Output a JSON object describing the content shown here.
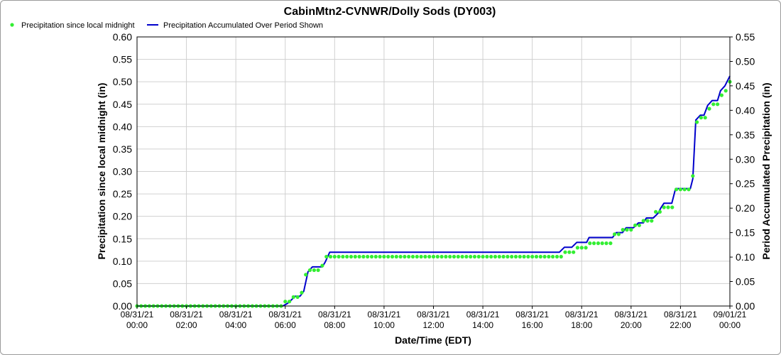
{
  "chart_data": {
    "type": "line",
    "title": "CabinMtn2-CVNWR/Dolly Sods (DY003)",
    "xlabel": "Date/Time (EDT)",
    "ylabel_left": "Precipitation since local midnight (in)",
    "ylabel_right": "Period Accumulated Precipitation (in)",
    "grid": true,
    "legend_position": "top-left",
    "x_range_hours": [
      0,
      24
    ],
    "x_ticks": [
      {
        "hour": 0,
        "date": "08/31/21",
        "time": "00:00"
      },
      {
        "hour": 2,
        "date": "08/31/21",
        "time": "02:00"
      },
      {
        "hour": 4,
        "date": "08/31/21",
        "time": "04:00"
      },
      {
        "hour": 6,
        "date": "08/31/21",
        "time": "06:00"
      },
      {
        "hour": 8,
        "date": "08/31/21",
        "time": "08:00"
      },
      {
        "hour": 10,
        "date": "08/31/21",
        "time": "10:00"
      },
      {
        "hour": 12,
        "date": "08/31/21",
        "time": "12:00"
      },
      {
        "hour": 14,
        "date": "08/31/21",
        "time": "14:00"
      },
      {
        "hour": 16,
        "date": "08/31/21",
        "time": "16:00"
      },
      {
        "hour": 18,
        "date": "08/31/21",
        "time": "18:00"
      },
      {
        "hour": 20,
        "date": "08/31/21",
        "time": "20:00"
      },
      {
        "hour": 22,
        "date": "08/31/21",
        "time": "22:00"
      },
      {
        "hour": 24,
        "date": "09/01/21",
        "time": "00:00"
      }
    ],
    "left_axis": {
      "min": 0,
      "max": 0.6,
      "step": 0.05,
      "tick_labels": [
        "0.00",
        "0.05",
        "0.10",
        "0.15",
        "0.20",
        "0.25",
        "0.30",
        "0.35",
        "0.40",
        "0.45",
        "0.50",
        "0.55",
        "0.60"
      ]
    },
    "right_axis": {
      "min": 0,
      "max": 0.55,
      "step": 0.05,
      "tick_labels": [
        "0.00",
        "0.05",
        "0.10",
        "0.15",
        "0.20",
        "0.25",
        "0.30",
        "0.35",
        "0.40",
        "0.45",
        "0.50",
        "0.55"
      ]
    },
    "series": [
      {
        "name": "Precipitation since local midnight",
        "axis": "left",
        "style": "points",
        "color": "#33ee33",
        "points": [
          [
            0.0,
            0
          ],
          [
            0.167,
            0
          ],
          [
            0.333,
            0
          ],
          [
            0.5,
            0
          ],
          [
            0.667,
            0
          ],
          [
            0.833,
            0
          ],
          [
            1.0,
            0
          ],
          [
            1.167,
            0
          ],
          [
            1.333,
            0
          ],
          [
            1.5,
            0
          ],
          [
            1.667,
            0
          ],
          [
            1.833,
            0
          ],
          [
            2.0,
            0
          ],
          [
            2.167,
            0
          ],
          [
            2.333,
            0
          ],
          [
            2.5,
            0
          ],
          [
            2.667,
            0
          ],
          [
            2.833,
            0
          ],
          [
            3.0,
            0
          ],
          [
            3.167,
            0
          ],
          [
            3.333,
            0
          ],
          [
            3.5,
            0
          ],
          [
            3.667,
            0
          ],
          [
            3.833,
            0
          ],
          [
            4.0,
            0
          ],
          [
            4.167,
            0
          ],
          [
            4.333,
            0
          ],
          [
            4.5,
            0
          ],
          [
            4.667,
            0
          ],
          [
            4.833,
            0
          ],
          [
            5.0,
            0
          ],
          [
            5.167,
            0
          ],
          [
            5.333,
            0
          ],
          [
            5.5,
            0
          ],
          [
            5.667,
            0
          ],
          [
            5.833,
            0
          ],
          [
            6.0,
            0.01
          ],
          [
            6.167,
            0.01
          ],
          [
            6.333,
            0.02
          ],
          [
            6.5,
            0.02
          ],
          [
            6.667,
            0.03
          ],
          [
            6.833,
            0.07
          ],
          [
            7.0,
            0.08
          ],
          [
            7.167,
            0.08
          ],
          [
            7.333,
            0.08
          ],
          [
            7.5,
            0.09
          ],
          [
            7.667,
            0.11
          ],
          [
            7.833,
            0.11
          ],
          [
            8.0,
            0.11
          ],
          [
            8.167,
            0.11
          ],
          [
            8.333,
            0.11
          ],
          [
            8.5,
            0.11
          ],
          [
            8.667,
            0.11
          ],
          [
            8.833,
            0.11
          ],
          [
            9.0,
            0.11
          ],
          [
            9.167,
            0.11
          ],
          [
            9.333,
            0.11
          ],
          [
            9.5,
            0.11
          ],
          [
            9.667,
            0.11
          ],
          [
            9.833,
            0.11
          ],
          [
            10.0,
            0.11
          ],
          [
            10.167,
            0.11
          ],
          [
            10.333,
            0.11
          ],
          [
            10.5,
            0.11
          ],
          [
            10.667,
            0.11
          ],
          [
            10.833,
            0.11
          ],
          [
            11.0,
            0.11
          ],
          [
            11.167,
            0.11
          ],
          [
            11.333,
            0.11
          ],
          [
            11.5,
            0.11
          ],
          [
            11.667,
            0.11
          ],
          [
            11.833,
            0.11
          ],
          [
            12.0,
            0.11
          ],
          [
            12.167,
            0.11
          ],
          [
            12.333,
            0.11
          ],
          [
            12.5,
            0.11
          ],
          [
            12.667,
            0.11
          ],
          [
            12.833,
            0.11
          ],
          [
            13.0,
            0.11
          ],
          [
            13.167,
            0.11
          ],
          [
            13.333,
            0.11
          ],
          [
            13.5,
            0.11
          ],
          [
            13.667,
            0.11
          ],
          [
            13.833,
            0.11
          ],
          [
            14.0,
            0.11
          ],
          [
            14.167,
            0.11
          ],
          [
            14.333,
            0.11
          ],
          [
            14.5,
            0.11
          ],
          [
            14.667,
            0.11
          ],
          [
            14.833,
            0.11
          ],
          [
            15.0,
            0.11
          ],
          [
            15.167,
            0.11
          ],
          [
            15.333,
            0.11
          ],
          [
            15.5,
            0.11
          ],
          [
            15.667,
            0.11
          ],
          [
            15.833,
            0.11
          ],
          [
            16.0,
            0.11
          ],
          [
            16.167,
            0.11
          ],
          [
            16.333,
            0.11
          ],
          [
            16.5,
            0.11
          ],
          [
            16.667,
            0.11
          ],
          [
            16.833,
            0.11
          ],
          [
            17.0,
            0.11
          ],
          [
            17.167,
            0.11
          ],
          [
            17.333,
            0.12
          ],
          [
            17.5,
            0.12
          ],
          [
            17.667,
            0.12
          ],
          [
            17.833,
            0.13
          ],
          [
            18.0,
            0.13
          ],
          [
            18.167,
            0.13
          ],
          [
            18.333,
            0.14
          ],
          [
            18.5,
            0.14
          ],
          [
            18.667,
            0.14
          ],
          [
            18.833,
            0.14
          ],
          [
            19.0,
            0.14
          ],
          [
            19.167,
            0.14
          ],
          [
            19.333,
            0.16
          ],
          [
            19.5,
            0.16
          ],
          [
            19.667,
            0.17
          ],
          [
            19.833,
            0.17
          ],
          [
            20.0,
            0.17
          ],
          [
            20.167,
            0.18
          ],
          [
            20.333,
            0.18
          ],
          [
            20.5,
            0.19
          ],
          [
            20.667,
            0.19
          ],
          [
            20.833,
            0.19
          ],
          [
            21.0,
            0.21
          ],
          [
            21.167,
            0.21
          ],
          [
            21.333,
            0.22
          ],
          [
            21.5,
            0.22
          ],
          [
            21.667,
            0.22
          ],
          [
            21.833,
            0.26
          ],
          [
            22.0,
            0.26
          ],
          [
            22.167,
            0.26
          ],
          [
            22.333,
            0.26
          ],
          [
            22.5,
            0.29
          ],
          [
            22.667,
            0.41
          ],
          [
            22.833,
            0.42
          ],
          [
            23.0,
            0.42
          ],
          [
            23.167,
            0.44
          ],
          [
            23.333,
            0.45
          ],
          [
            23.5,
            0.45
          ],
          [
            23.667,
            0.47
          ],
          [
            23.833,
            0.48
          ],
          [
            24.0,
            0.5
          ]
        ]
      },
      {
        "name": "Precipitation Accumulated Over Period Shown",
        "axis": "right",
        "style": "line",
        "color": "#0000cc",
        "points": [
          [
            0,
            0
          ],
          [
            5.9,
            0
          ],
          [
            6.08,
            0.005
          ],
          [
            6.2,
            0.01
          ],
          [
            6.4,
            0.02
          ],
          [
            6.6,
            0.02
          ],
          [
            6.75,
            0.03
          ],
          [
            6.92,
            0.07
          ],
          [
            7.1,
            0.08
          ],
          [
            7.5,
            0.08
          ],
          [
            7.62,
            0.09
          ],
          [
            7.8,
            0.11
          ],
          [
            17.0,
            0.11
          ],
          [
            17.1,
            0.11
          ],
          [
            17.3,
            0.12
          ],
          [
            17.6,
            0.12
          ],
          [
            17.8,
            0.13
          ],
          [
            18.2,
            0.13
          ],
          [
            18.3,
            0.14
          ],
          [
            18.6,
            0.14
          ],
          [
            18.75,
            0.14
          ],
          [
            19.25,
            0.14
          ],
          [
            19.4,
            0.15
          ],
          [
            19.65,
            0.15
          ],
          [
            19.8,
            0.16
          ],
          [
            20.1,
            0.16
          ],
          [
            20.3,
            0.17
          ],
          [
            20.5,
            0.17
          ],
          [
            20.62,
            0.18
          ],
          [
            20.9,
            0.18
          ],
          [
            21.1,
            0.19
          ],
          [
            21.2,
            0.2
          ],
          [
            21.33,
            0.21
          ],
          [
            21.65,
            0.21
          ],
          [
            21.8,
            0.24
          ],
          [
            22.25,
            0.24
          ],
          [
            22.4,
            0.24
          ],
          [
            22.5,
            0.26
          ],
          [
            22.62,
            0.38
          ],
          [
            22.8,
            0.39
          ],
          [
            22.95,
            0.39
          ],
          [
            23.1,
            0.41
          ],
          [
            23.28,
            0.42
          ],
          [
            23.5,
            0.42
          ],
          [
            23.62,
            0.44
          ],
          [
            23.8,
            0.45
          ],
          [
            24.0,
            0.47
          ]
        ]
      }
    ]
  }
}
